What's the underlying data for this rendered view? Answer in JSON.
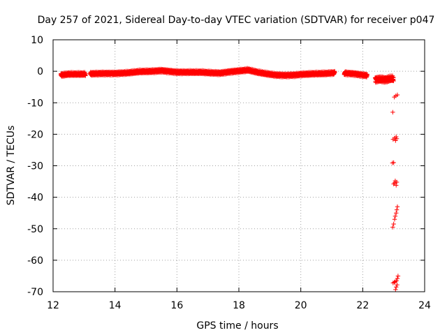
{
  "chart_data": {
    "type": "scatter",
    "title": "Day 257 of 2021, Sidereal Day-to-day VTEC variation (SDTVAR) for receiver p047",
    "xlabel": "GPS time / hours",
    "ylabel": "SDTVAR / TECUs",
    "xlim": [
      12,
      24
    ],
    "ylim": [
      -70,
      10
    ],
    "xticks": [
      "12",
      "14",
      "16",
      "18",
      "20",
      "22",
      "24"
    ],
    "yticks": [
      "10",
      "0",
      "-10",
      "-20",
      "-30",
      "-40",
      "-50",
      "-60",
      "-70"
    ],
    "grid": true,
    "marker": "+",
    "color": "#ff0000",
    "curve": {
      "x": [
        12.25,
        12.5,
        13.0,
        13.2,
        13.6,
        14.0,
        14.4,
        14.8,
        15.2,
        15.5,
        15.8,
        16.0,
        16.4,
        16.8,
        17.1,
        17.4,
        17.7,
        18.0,
        18.3,
        18.6,
        18.9,
        19.2,
        19.5,
        19.8,
        20.0,
        20.4,
        20.8,
        21.1,
        21.4,
        21.7,
        22.0,
        22.2,
        22.4,
        22.6,
        22.8,
        23.0
      ],
      "y": [
        -1.2,
        -0.9,
        -0.9,
        -0.8,
        -0.7,
        -0.7,
        -0.5,
        -0.1,
        0.0,
        0.2,
        -0.1,
        -0.3,
        -0.3,
        -0.3,
        -0.5,
        -0.6,
        -0.2,
        0.1,
        0.4,
        -0.3,
        -0.8,
        -1.2,
        -1.3,
        -1.2,
        -1.0,
        -0.8,
        -0.7,
        -0.5,
        -0.6,
        -0.8,
        -1.2,
        -1.4,
        -2.5,
        -2.6,
        -2.6,
        -2.5
      ]
    },
    "gaps": [
      [
        13.05,
        13.2
      ],
      [
        21.1,
        21.4
      ],
      [
        22.15,
        22.4
      ]
    ],
    "scatter_points": [
      {
        "x": 23.07,
        "y": -7.8
      },
      {
        "x": 23.12,
        "y": -7.5
      },
      {
        "x": 23.02,
        "y": -8.2
      },
      {
        "x": 22.97,
        "y": -13.0
      },
      {
        "x": 23.03,
        "y": -21.2
      },
      {
        "x": 23.08,
        "y": -20.8
      },
      {
        "x": 22.98,
        "y": -21.6
      },
      {
        "x": 23.06,
        "y": -22.0
      },
      {
        "x": 23.1,
        "y": -21.4
      },
      {
        "x": 22.96,
        "y": -29.1
      },
      {
        "x": 23.0,
        "y": -29.0
      },
      {
        "x": 23.05,
        "y": -34.8
      },
      {
        "x": 23.1,
        "y": -35.2
      },
      {
        "x": 23.0,
        "y": -35.8
      },
      {
        "x": 23.08,
        "y": -36.2
      },
      {
        "x": 23.03,
        "y": -35.4
      },
      {
        "x": 23.12,
        "y": -43.0
      },
      {
        "x": 23.1,
        "y": -44.0
      },
      {
        "x": 23.08,
        "y": -45.0
      },
      {
        "x": 23.05,
        "y": -46.0
      },
      {
        "x": 23.03,
        "y": -47.0
      },
      {
        "x": 23.0,
        "y": -48.5
      },
      {
        "x": 22.97,
        "y": -49.5
      },
      {
        "x": 23.14,
        "y": -65.0
      },
      {
        "x": 23.12,
        "y": -65.8
      },
      {
        "x": 23.09,
        "y": -66.5
      },
      {
        "x": 23.05,
        "y": -66.8
      },
      {
        "x": 23.02,
        "y": -67.0
      },
      {
        "x": 22.98,
        "y": -67.2
      },
      {
        "x": 23.11,
        "y": -67.8
      },
      {
        "x": 23.08,
        "y": -68.5
      },
      {
        "x": 23.06,
        "y": -69.3
      }
    ]
  }
}
